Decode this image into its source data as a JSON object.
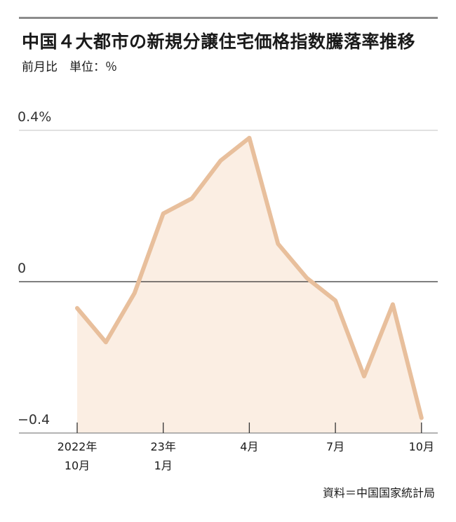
{
  "title": "中国４大都市の新規分譲住宅価格指数騰落率推移",
  "subtitle": "前月比　単位：％",
  "source": "資料＝中国国家統計局",
  "colors": {
    "line": "#e8bf9c",
    "area": "#fbeee3",
    "grid": "#cfcfcf",
    "zero": "#333333",
    "axis": "#9a9a9a"
  },
  "chart_data": {
    "type": "area",
    "title": "中国４大都市の新規分譲住宅価格指数騰落率推移",
    "ylabel": "前月比　単位：％",
    "ylim": [
      -0.4,
      0.4
    ],
    "y_ticks": [
      {
        "value": 0.4,
        "label": "0.4%"
      },
      {
        "value": 0,
        "label": "0"
      },
      {
        "value": -0.4,
        "label": "−0.4"
      }
    ],
    "x": [
      "2022-10",
      "2022-11",
      "2022-12",
      "2023-01",
      "2023-02",
      "2023-03",
      "2023-04",
      "2023-05",
      "2023-06",
      "2023-07",
      "2023-08",
      "2023-09",
      "2023-10"
    ],
    "values": [
      -0.07,
      -0.16,
      -0.03,
      0.18,
      0.22,
      0.32,
      0.38,
      0.1,
      0.01,
      -0.05,
      -0.25,
      -0.06,
      -0.36
    ],
    "x_ticks": [
      {
        "index": 0,
        "line1": "2022年",
        "line2": "10月"
      },
      {
        "index": 3,
        "line1": "23年",
        "line2": "1月"
      },
      {
        "index": 6,
        "line1": "4月",
        "line2": ""
      },
      {
        "index": 9,
        "line1": "7月",
        "line2": ""
      },
      {
        "index": 12,
        "line1": "10月",
        "line2": ""
      }
    ]
  }
}
